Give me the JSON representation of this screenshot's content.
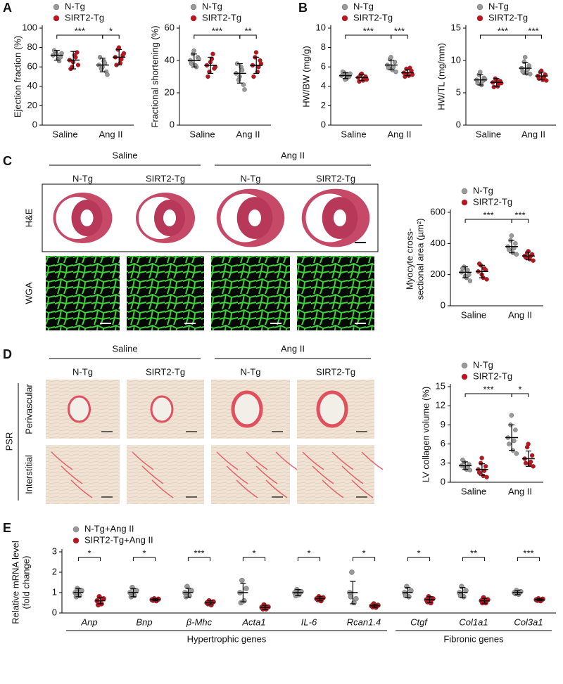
{
  "panel_labels": [
    "A",
    "B",
    "C",
    "D",
    "E"
  ],
  "histology": [
    {
      "conditions": [
        "Saline",
        "Ang II"
      ],
      "genotypes": [
        "N-Tg",
        "SIRT2-Tg",
        "N-Tg",
        "SIRT2-Tg"
      ],
      "rows": [
        "H&E",
        "WGA"
      ]
    },
    {
      "stain": "PSR",
      "conditions": [
        "Saline",
        "Ang II"
      ],
      "genotypes": [
        "N-Tg",
        "SIRT2-Tg",
        "N-Tg",
        "SIRT2-Tg"
      ],
      "rows": [
        "Perivascular",
        "Interstitial"
      ]
    }
  ],
  "chart_data": [
    {
      "type": "dot",
      "ylabel": "Ejection fraction (%)",
      "categories": [
        "Saline",
        "Ang II"
      ],
      "ylim": [
        0,
        100
      ],
      "yticks": [
        0,
        20,
        40,
        60,
        80,
        100
      ],
      "legend": "top-left",
      "significance": [
        "***",
        "*"
      ],
      "series": [
        {
          "name": "N-Tg",
          "color": "#9a9a9a",
          "means": [
            72,
            62
          ],
          "sds": [
            5,
            7
          ],
          "points": [
            [
              72,
              75,
              68,
              70,
              77,
              73,
              66,
              74
            ],
            [
              62,
              58,
              66,
              55,
              70,
              60,
              64,
              52
            ]
          ]
        },
        {
          "name": "SIRT2-Tg",
          "color": "#c0141c",
          "means": [
            67,
            70
          ],
          "sds": [
            9,
            8
          ],
          "points": [
            [
              67,
              60,
              72,
              75,
              58,
              65,
              70,
              62
            ],
            [
              70,
              78,
              64,
              72,
              62,
              80,
              68,
              74
            ]
          ]
        }
      ]
    },
    {
      "type": "dot",
      "ylabel": "Fractional shortening (%)",
      "categories": [
        "Saline",
        "Ang II"
      ],
      "ylim": [
        0,
        60
      ],
      "yticks": [
        0,
        20,
        40,
        60
      ],
      "legend": "top-left",
      "significance": [
        "***",
        "**"
      ],
      "series": [
        {
          "name": "N-Tg",
          "color": "#9a9a9a",
          "means": [
            40,
            32
          ],
          "sds": [
            4,
            6
          ],
          "points": [
            [
              40,
              44,
              37,
              42,
              38,
              46,
              36,
              41
            ],
            [
              32,
              28,
              36,
              25,
              38,
              30,
              34,
              22
            ]
          ]
        },
        {
          "name": "SIRT2-Tg",
          "color": "#c0141c",
          "means": [
            37,
            37
          ],
          "sds": [
            5,
            5
          ],
          "points": [
            [
              37,
              33,
              41,
              35,
              30,
              39,
              44,
              36
            ],
            [
              37,
              42,
              33,
              40,
              30,
              45,
              36,
              38
            ]
          ]
        }
      ]
    },
    {
      "type": "dot",
      "ylabel": "HW/BW (mg/g)",
      "categories": [
        "Saline",
        "Ang II"
      ],
      "ylim": [
        0,
        10
      ],
      "yticks": [
        0,
        2,
        4,
        6,
        8,
        10
      ],
      "legend": "top-left",
      "significance": [
        "***",
        "***"
      ],
      "series": [
        {
          "name": "N-Tg",
          "color": "#9a9a9a",
          "means": [
            5.1,
            6.2
          ],
          "sds": [
            0.3,
            0.5
          ],
          "points": [
            [
              5.1,
              5.4,
              4.8,
              5.0,
              5.5,
              4.7,
              5.2,
              5.3
            ],
            [
              6.2,
              6.8,
              5.7,
              6.5,
              5.9,
              7.0,
              6.0,
              5.5
            ]
          ]
        },
        {
          "name": "SIRT2-Tg",
          "color": "#c0141c",
          "means": [
            4.9,
            5.4
          ],
          "sds": [
            0.3,
            0.3
          ],
          "points": [
            [
              4.9,
              5.2,
              4.6,
              5.0,
              4.5,
              5.3,
              4.8,
              4.7
            ],
            [
              5.4,
              5.8,
              5.1,
              5.6,
              5.0,
              5.3,
              5.9,
              5.2
            ]
          ]
        }
      ]
    },
    {
      "type": "dot",
      "ylabel": "HW/TL (mg/mm)",
      "categories": [
        "Saline",
        "Ang II"
      ],
      "ylim": [
        0,
        15
      ],
      "yticks": [
        0,
        5,
        10,
        15
      ],
      "legend": "top-left",
      "significance": [
        "***",
        "***"
      ],
      "series": [
        {
          "name": "N-Tg",
          "color": "#9a9a9a",
          "means": [
            7.0,
            8.8
          ],
          "sds": [
            0.8,
            0.9
          ],
          "points": [
            [
              7.0,
              7.8,
              6.2,
              7.3,
              6.5,
              8.2,
              6.8,
              7.1
            ],
            [
              8.8,
              9.8,
              8.0,
              9.2,
              8.3,
              10.5,
              8.6,
              7.9
            ]
          ]
        },
        {
          "name": "SIRT2-Tg",
          "color": "#c0141c",
          "means": [
            6.6,
            7.6
          ],
          "sds": [
            0.6,
            0.6
          ],
          "points": [
            [
              6.6,
              7.2,
              6.0,
              6.8,
              5.9,
              7.0,
              6.4,
              6.5
            ],
            [
              7.6,
              8.2,
              7.0,
              7.8,
              7.2,
              8.4,
              7.4,
              6.9
            ]
          ]
        }
      ]
    },
    {
      "type": "dot",
      "ylabel": [
        "Myocyte cross-",
        "sectional area (µm²)"
      ],
      "categories": [
        "Saline",
        "Ang II"
      ],
      "ylim": [
        0,
        600
      ],
      "yticks": [
        0,
        200,
        400,
        600
      ],
      "legend": "top-left",
      "significance": [
        "***",
        "***"
      ],
      "series": [
        {
          "name": "N-Tg",
          "color": "#9a9a9a",
          "means": [
            215,
            380
          ],
          "sds": [
            35,
            40
          ],
          "points": [
            [
              215,
              250,
              180,
              200,
              240,
              190,
              230,
              160
            ],
            [
              380,
              420,
              340,
              400,
              360,
              450,
              370,
              330
            ]
          ]
        },
        {
          "name": "SIRT2-Tg",
          "color": "#c0141c",
          "means": [
            220,
            320
          ],
          "sds": [
            40,
            25
          ],
          "points": [
            [
              220,
              260,
              180,
              230,
              270,
              200,
              240,
              170
            ],
            [
              320,
              340,
              300,
              330,
              310,
              350,
              320,
              290
            ]
          ]
        }
      ]
    },
    {
      "type": "dot",
      "ylabel": "LV collagen volume (%)",
      "categories": [
        "Saline",
        "Ang II"
      ],
      "ylim": [
        0,
        15
      ],
      "yticks": [
        0,
        3,
        6,
        9,
        12,
        15
      ],
      "legend": "top-left",
      "significance": [
        "***",
        "*"
      ],
      "series": [
        {
          "name": "N-Tg",
          "color": "#9a9a9a",
          "means": [
            2.6,
            7.0
          ],
          "sds": [
            0.6,
            2.0
          ],
          "points": [
            [
              2.6,
              3.2,
              2.0,
              2.8,
              3.5,
              2.2,
              2.4,
              1.9
            ],
            [
              7.0,
              9.0,
              5.0,
              8.2,
              6.0,
              10.5,
              6.5,
              4.5
            ]
          ]
        },
        {
          "name": "SIRT2-Tg",
          "color": "#c0141c",
          "means": [
            2.0,
            3.7
          ],
          "sds": [
            0.9,
            1.2
          ],
          "points": [
            [
              2.0,
              3.0,
              1.0,
              2.5,
              1.5,
              3.8,
              1.8,
              0.8
            ],
            [
              3.7,
              5.5,
              2.8,
              4.2,
              3.0,
              6.0,
              3.2,
              2.5
            ]
          ]
        }
      ]
    },
    {
      "type": "strip",
      "ylabel": [
        "Relative mRNA level",
        "(fold change)"
      ],
      "categories": [
        "Anp",
        "Bnp",
        "β-Mhc",
        "Acta1",
        "IL-6",
        "Rcan1.4",
        "Ctgf",
        "Col1a1",
        "Col3a1"
      ],
      "ylim": [
        0,
        3
      ],
      "yticks": [
        0,
        1,
        2,
        3
      ],
      "legend": "top-left",
      "significance": [
        "*",
        "*",
        "***",
        "*",
        "*",
        "*",
        "*",
        "**",
        "***"
      ],
      "groups": [
        {
          "label": "Hypertrophic genes",
          "span": 6
        },
        {
          "label": "Fibronic genes",
          "span": 3
        }
      ],
      "series": [
        {
          "name": "N-Tg+Ang II",
          "color": "#9a9a9a",
          "means": [
            1,
            1,
            1,
            1,
            1,
            1,
            1,
            1,
            1
          ],
          "sds": [
            0.2,
            0.2,
            0.22,
            0.45,
            0.15,
            0.55,
            0.25,
            0.25,
            0.1
          ],
          "points": [
            [
              1.0,
              1.2,
              0.85,
              1.1,
              0.8
            ],
            [
              1.0,
              1.25,
              0.85,
              1.1,
              0.8
            ],
            [
              1.0,
              1.3,
              0.85,
              1.1,
              0.8
            ],
            [
              1.0,
              1.6,
              0.6,
              1.2,
              0.5
            ],
            [
              1.0,
              1.15,
              0.9,
              1.05,
              0.85
            ],
            [
              1.0,
              2.0,
              0.5,
              0.7,
              0.8
            ],
            [
              1.0,
              1.3,
              0.8,
              1.1,
              0.85
            ],
            [
              1.0,
              1.3,
              0.8,
              1.1,
              0.85
            ],
            [
              1.0,
              1.1,
              0.92,
              1.05,
              0.95
            ]
          ]
        },
        {
          "name": "SIRT2-Tg+Ang II",
          "color": "#c0141c",
          "means": [
            0.6,
            0.65,
            0.5,
            0.28,
            0.7,
            0.35,
            0.65,
            0.6,
            0.65
          ],
          "sds": [
            0.15,
            0.05,
            0.1,
            0.1,
            0.1,
            0.08,
            0.15,
            0.12,
            0.05
          ],
          "points": [
            [
              0.6,
              0.8,
              0.45,
              0.7,
              0.4
            ],
            [
              0.65,
              0.7,
              0.6,
              0.68,
              0.62
            ],
            [
              0.5,
              0.6,
              0.4,
              0.55,
              0.45
            ],
            [
              0.28,
              0.4,
              0.2,
              0.3,
              0.2
            ],
            [
              0.7,
              0.8,
              0.6,
              0.75,
              0.65
            ],
            [
              0.35,
              0.45,
              0.28,
              0.38,
              0.3
            ],
            [
              0.65,
              0.8,
              0.5,
              0.7,
              0.55
            ],
            [
              0.6,
              0.75,
              0.5,
              0.65,
              0.5
            ],
            [
              0.65,
              0.7,
              0.6,
              0.68,
              0.62
            ]
          ]
        }
      ]
    }
  ]
}
